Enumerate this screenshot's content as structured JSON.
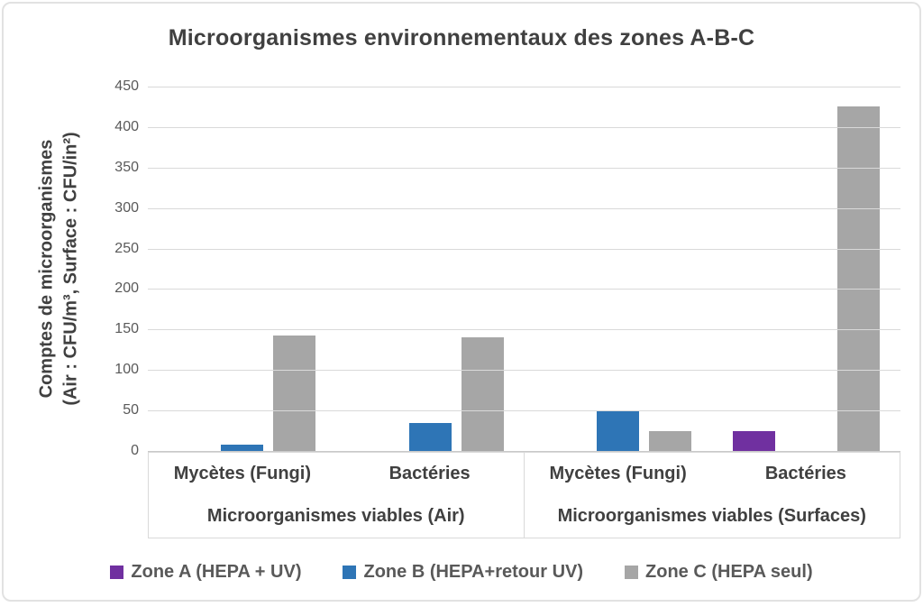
{
  "chart_data": {
    "type": "bar",
    "title": "Microorganismes environnementaux des zones A-B-C",
    "ylabel_line1": "Comptes de microorganismes",
    "ylabel_line2": "(Air : CFU/m³, Surface : CFU/in²)",
    "ylim": [
      0,
      450
    ],
    "ytick_step": 50,
    "yticks": [
      450,
      400,
      350,
      300,
      250,
      200,
      150,
      100,
      50,
      0
    ],
    "grid": true,
    "legend_position": "bottom",
    "categories": [
      "Mycètes (Fungi)",
      "Bactéries",
      "Mycètes (Fungi)",
      "Bactéries"
    ],
    "group_labels": [
      "Microorganismes viables (Air)",
      "Microorganismes viables (Surfaces)"
    ],
    "series": [
      {
        "name": "Zone A (HEPA + UV)",
        "color": "#7030A0",
        "values": [
          0,
          0,
          0,
          25
        ]
      },
      {
        "name": "Zone B (HEPA+retour UV)",
        "color": "#2E75B6",
        "values": [
          8,
          35,
          50,
          0
        ]
      },
      {
        "name": "Zone C (HEPA seul)",
        "color": "#A6A6A6",
        "values": [
          143,
          140,
          25,
          425
        ]
      }
    ],
    "colors": {
      "title_text": "#404040",
      "tick_text": "#595959",
      "gridline": "#d9d9d9"
    }
  }
}
